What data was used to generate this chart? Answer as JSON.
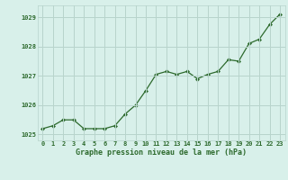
{
  "hours": [
    0,
    1,
    2,
    3,
    4,
    5,
    6,
    7,
    8,
    9,
    10,
    11,
    12,
    13,
    14,
    15,
    16,
    17,
    18,
    19,
    20,
    21,
    22,
    23
  ],
  "pressure": [
    1025.2,
    1025.3,
    1025.5,
    1025.5,
    1025.2,
    1025.2,
    1025.2,
    1025.3,
    1025.7,
    1026.0,
    1026.5,
    1027.05,
    1027.15,
    1027.05,
    1027.15,
    1026.9,
    1027.05,
    1027.15,
    1027.55,
    1027.5,
    1028.1,
    1028.25,
    1028.75,
    1029.1
  ],
  "line_color": "#2d6a2d",
  "marker_color": "#2d6a2d",
  "bg_color": "#d8f0ea",
  "grid_color": "#b8d4cc",
  "tick_color": "#2d6a2d",
  "xlabel": "Graphe pression niveau de la mer (hPa)",
  "xlabel_color": "#2d6a2d",
  "ylim": [
    1024.8,
    1029.4
  ],
  "yticks": [
    1025,
    1026,
    1027,
    1028,
    1029
  ],
  "xticks": [
    0,
    1,
    2,
    3,
    4,
    5,
    6,
    7,
    8,
    9,
    10,
    11,
    12,
    13,
    14,
    15,
    16,
    17,
    18,
    19,
    20,
    21,
    22,
    23
  ]
}
